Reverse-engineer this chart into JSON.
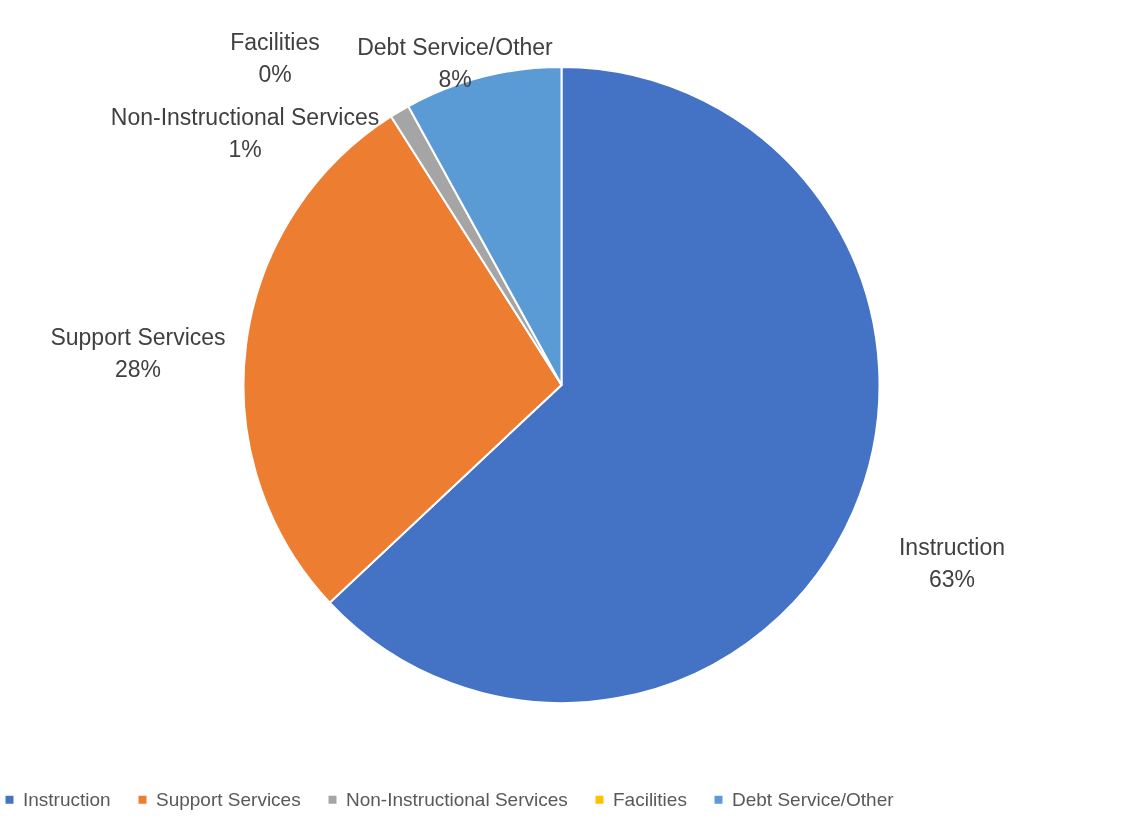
{
  "chart_data": {
    "type": "pie",
    "categories": [
      "Instruction",
      "Support Services",
      "Non-Instructional Services",
      "Facilities",
      "Debt Service/Other"
    ],
    "values": [
      63,
      28,
      1,
      0,
      8
    ],
    "colors": [
      "#4472c4",
      "#ed7d31",
      "#a5a5a5",
      "#ffc000",
      "#5b9bd5"
    ],
    "value_labels": [
      "63%",
      "28%",
      "1%",
      "0%",
      "8%"
    ],
    "legend": "bottom"
  }
}
